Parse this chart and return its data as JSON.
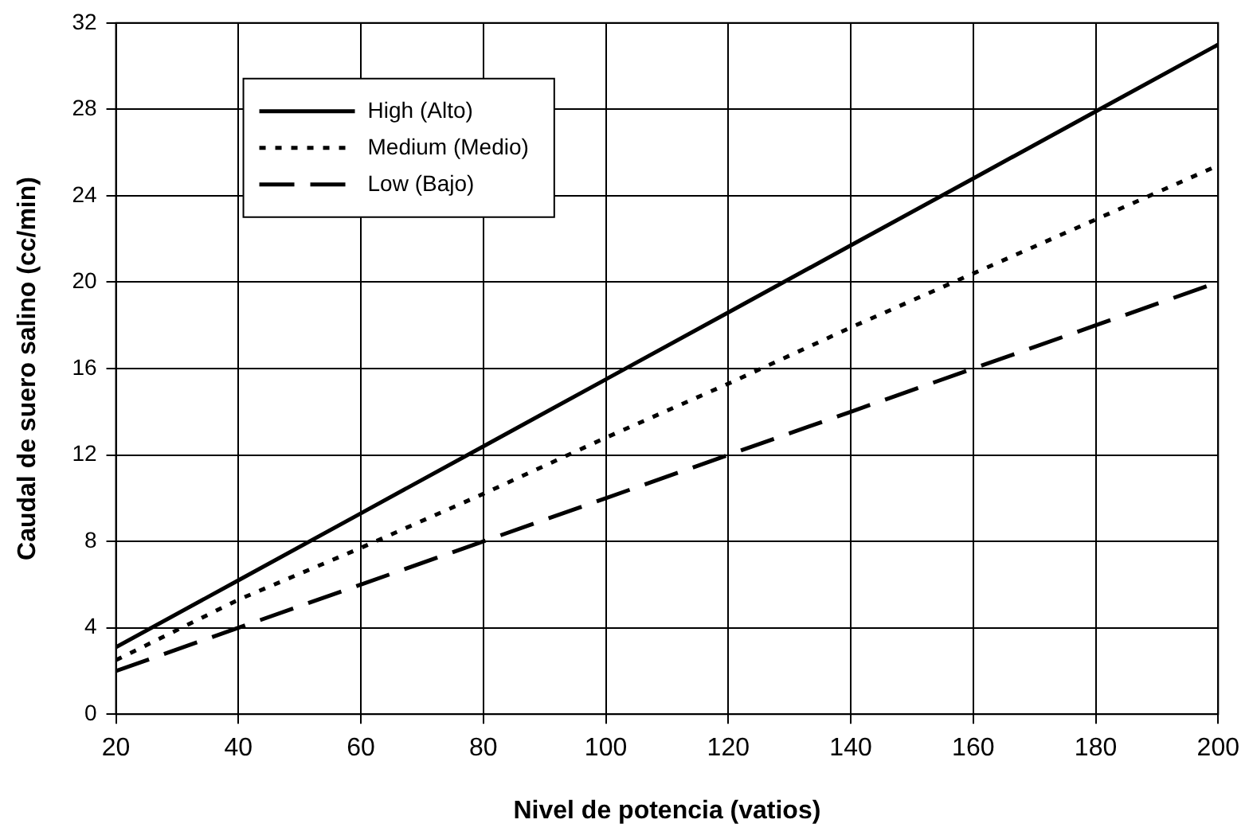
{
  "chart_data": {
    "type": "line",
    "xlabel": "Nivel de potencia (vatios)",
    "ylabel": "Caudal de suero salino (cc/min)",
    "x": [
      20,
      40,
      60,
      80,
      100,
      120,
      140,
      160,
      180,
      200
    ],
    "xlim": [
      20,
      200
    ],
    "xticks": [
      20,
      40,
      60,
      80,
      100,
      120,
      140,
      160,
      180,
      200
    ],
    "ylim": [
      0,
      32
    ],
    "yticks": [
      0,
      4,
      8,
      12,
      16,
      20,
      24,
      28,
      32
    ],
    "grid": true,
    "legend": "top left",
    "marker": "none",
    "series": [
      {
        "name": "High (Alto)",
        "color": "#000000",
        "line_style": "solid",
        "values": [
          3.1,
          6.2,
          9.3,
          12.4,
          15.5,
          18.6,
          21.7,
          24.8,
          27.9,
          31
        ]
      },
      {
        "name": "Medium (Medio)",
        "color": "#000000",
        "line_style": "dotted",
        "values": [
          2.5,
          5.3,
          7.7,
          10.2,
          12.8,
          15.3,
          17.9,
          20.4,
          22.9,
          25.4
        ]
      },
      {
        "name": "Low (Bajo)",
        "color": "#000000",
        "line_style": "dashed",
        "values": [
          2,
          4,
          6,
          8,
          10,
          12,
          14,
          16,
          18,
          20
        ]
      }
    ]
  }
}
